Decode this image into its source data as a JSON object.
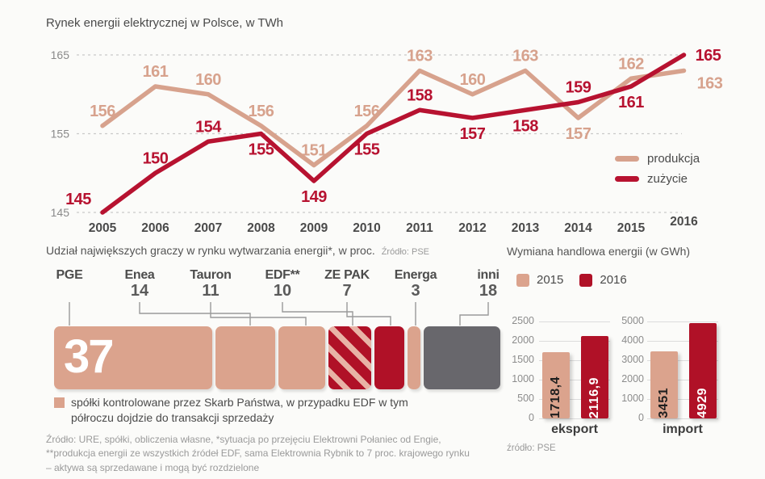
{
  "colors": {
    "salmon": "#D7A28D",
    "salmon_bar": "#DBA38D",
    "red": "#B71230",
    "red_bar": "#B01127",
    "gray_seg": "#68676C",
    "grid": "#c9c9c9",
    "axis_text": "#8a8a8a",
    "year_text": "#4a4a4a"
  },
  "top_chart": {
    "title": "Rynek energii elektrycznej w Polsce, w TWh"
  },
  "left_section": {
    "title": "Udział największych graczy w rynku wytwarzania energii*, w proc.",
    "source": "Źródło: PSE",
    "legend_text": "spółki kontrolowane przez Skarb Państwa, w przypadku EDF w tym półroczu dojdzie do transakcji sprzedaży",
    "footnotes": [
      "Źródło: URE, spółki, obliczenia własne, *sytuacja po przejęciu Elektrowni Połaniec od Engie,",
      "**produkcja energii ze wszystkich źródeł EDF,  sama Elektrownia Rybnik to 7 proc. krajowego rynku",
      "– aktywa są sprzedawane i mogą być rozdzielone"
    ]
  },
  "right_section": {
    "title": "Wymiana handlowa energii (w GWh)",
    "source": "źródło: PSE"
  },
  "chart_data": [
    {
      "type": "line",
      "title": "Rynek energii elektrycznej w Polsce, w TWh",
      "x": [
        2005,
        2006,
        2007,
        2008,
        2009,
        2010,
        2011,
        2012,
        2013,
        2014,
        2015,
        2016
      ],
      "series": [
        {
          "name": "produkcja",
          "color": "#D7A28D",
          "values": [
            156,
            161,
            160,
            156,
            151,
            156,
            163,
            160,
            163,
            157,
            162,
            163
          ]
        },
        {
          "name": "zużycie",
          "color": "#B71230",
          "values": [
            145,
            150,
            154,
            155,
            149,
            155,
            158,
            157,
            158,
            159,
            161,
            165
          ]
        }
      ],
      "ylim": [
        145,
        165
      ],
      "yticks": [
        165,
        155,
        145
      ],
      "grid": "dashed-horizontal",
      "legend_position": "right"
    },
    {
      "type": "bar",
      "subtype": "stacked-horizontal",
      "title": "Udział największych graczy w rynku wytwarzania energii*, w proc.",
      "source": "Źródło: PSE",
      "segments": [
        {
          "name": "PGE",
          "value": 37,
          "style": "state",
          "value_inside": true
        },
        {
          "name": "Enea",
          "value": 14,
          "style": "state"
        },
        {
          "name": "Tauron",
          "value": 11,
          "style": "state"
        },
        {
          "name": "EDF**",
          "value": 10,
          "style": "edf"
        },
        {
          "name": "ZE PAK",
          "value": 7,
          "style": "private"
        },
        {
          "name": "Energa",
          "value": 3,
          "style": "state"
        },
        {
          "name": "inni",
          "value": 18,
          "style": "other"
        }
      ],
      "legend": "spółki kontrolowane przez Skarb Państwa, w przypadku EDF w tym półroczu dojdzie do transakcji sprzedaży"
    },
    {
      "type": "bar",
      "subtype": "grouped",
      "title": "Wymiana handlowa energii (w GWh)",
      "legend": [
        "2015",
        "2016"
      ],
      "series_colors": [
        "#DBA38D",
        "#B01127"
      ],
      "groups": [
        {
          "label": "eksport",
          "ylim": [
            0,
            2500
          ],
          "yticks": [
            2500,
            2000,
            1500,
            1000,
            500,
            0
          ],
          "values": [
            1718.4,
            2116.9
          ],
          "value_labels": [
            "1718,4",
            "2116,9"
          ]
        },
        {
          "label": "import",
          "ylim": [
            0,
            5000
          ],
          "yticks": [
            5000,
            4000,
            3000,
            2000,
            1000,
            0
          ],
          "values": [
            3451,
            4929
          ],
          "value_labels": [
            "3451",
            "4929"
          ]
        }
      ],
      "source": "źródło: PSE"
    }
  ]
}
